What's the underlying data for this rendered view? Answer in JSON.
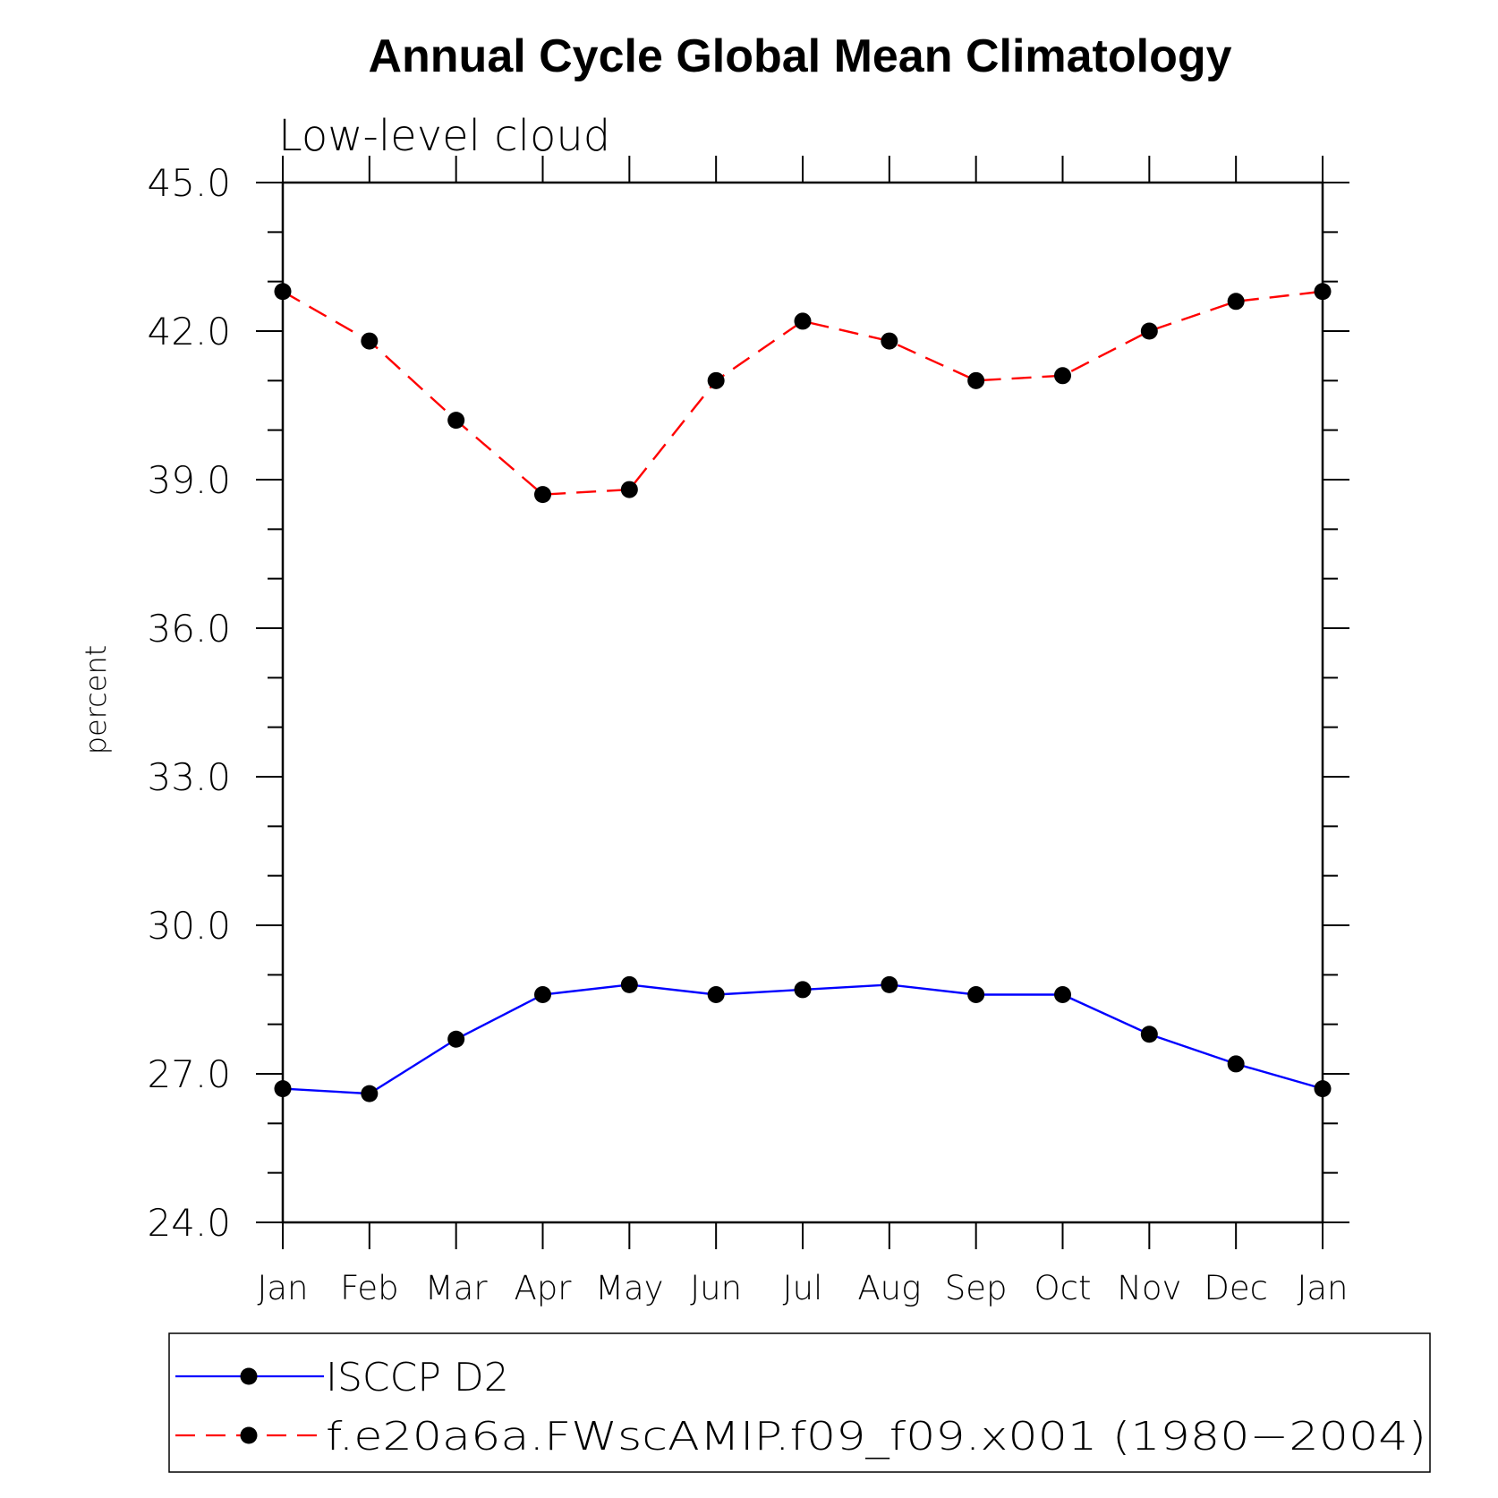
{
  "chart_data": {
    "type": "line",
    "title": "Annual Cycle Global Mean Climatology",
    "subtitle": "Low-level cloud",
    "xlabel": "",
    "ylabel": "percent",
    "ylim": [
      24.0,
      45.0
    ],
    "yticks": [
      "24.0",
      "27.0",
      "30.0",
      "33.0",
      "36.0",
      "39.0",
      "42.0",
      "45.0"
    ],
    "categories": [
      "Jan",
      "Feb",
      "Mar",
      "Apr",
      "May",
      "Jun",
      "Jul",
      "Aug",
      "Sep",
      "Oct",
      "Nov",
      "Dec",
      "Jan"
    ],
    "grid": false,
    "legend_position": "bottom",
    "series": [
      {
        "name": "ISCCP D2",
        "color": "#0000ff",
        "style": "solid",
        "marker": "circle",
        "values": [
          26.7,
          26.6,
          27.7,
          28.6,
          28.8,
          28.6,
          28.7,
          28.8,
          28.6,
          28.6,
          27.8,
          27.2,
          26.7
        ]
      },
      {
        "name": "f.e20a6a.FWscAMIP.f09_f09.x001 (1980−2004)",
        "color": "#ff0000",
        "style": "dashed",
        "marker": "circle",
        "values": [
          42.8,
          41.8,
          40.2,
          38.7,
          38.8,
          41.0,
          42.2,
          41.8,
          41.0,
          41.1,
          42.0,
          42.6,
          42.8
        ]
      }
    ]
  }
}
